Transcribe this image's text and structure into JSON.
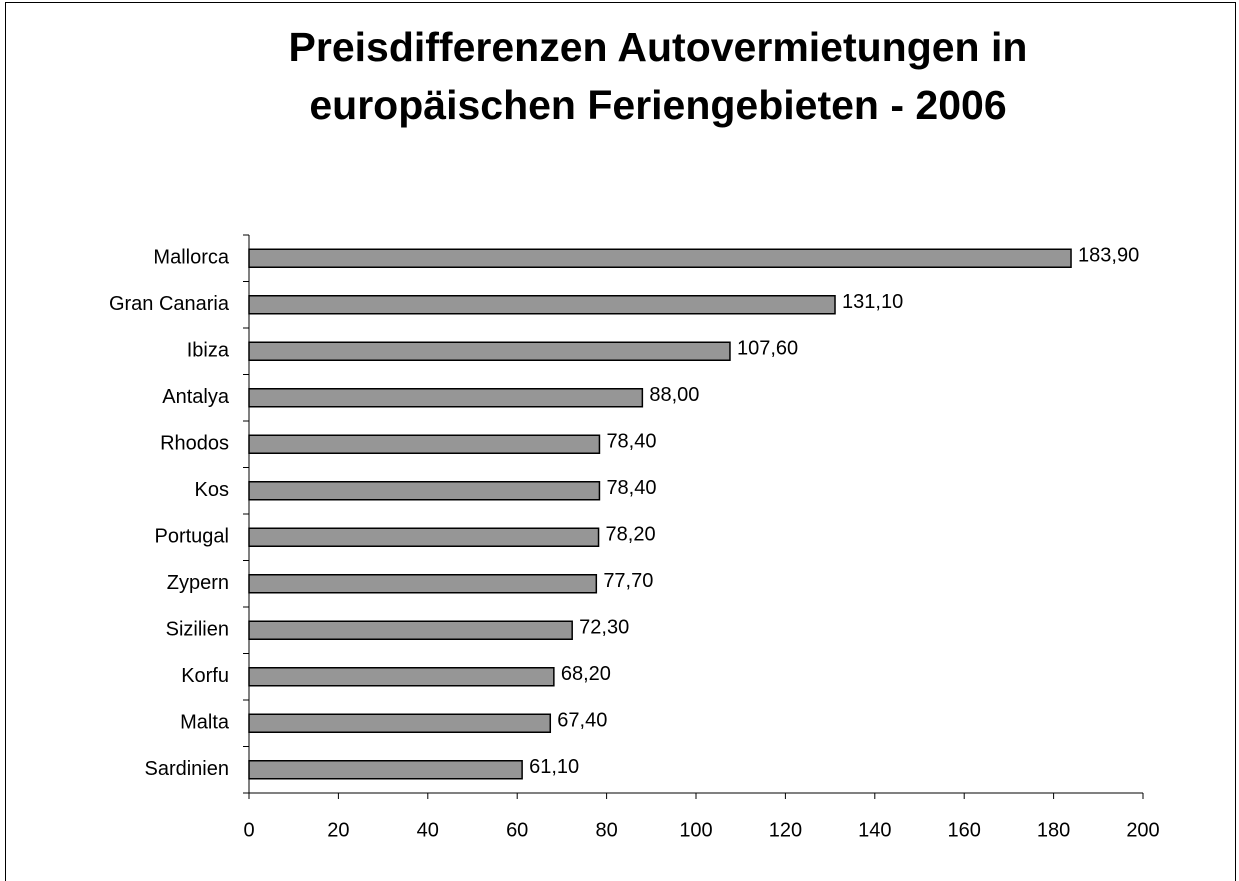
{
  "chart_data": {
    "type": "bar",
    "orientation": "horizontal",
    "title": [
      "Preisdifferenzen Autovermietungen in",
      "europäischen Feriengebieten - 2006"
    ],
    "categories": [
      "Mallorca",
      "Gran Canaria",
      "Ibiza",
      "Antalya",
      "Rhodos",
      "Kos",
      "Portugal",
      "Zypern",
      "Sizilien",
      "Korfu",
      "Malta",
      "Sardinien"
    ],
    "values": [
      183.9,
      131.1,
      107.6,
      88.0,
      78.4,
      78.4,
      78.2,
      77.7,
      72.3,
      68.2,
      67.4,
      61.1
    ],
    "value_labels": [
      "183,90",
      "131,10",
      "107,60",
      "88,00",
      "78,40",
      "78,40",
      "78,20",
      "77,70",
      "72,30",
      "68,20",
      "67,40",
      "61,10"
    ],
    "color": "#969696",
    "xlim": [
      0,
      200
    ],
    "xticks": [
      0,
      20,
      40,
      60,
      80,
      100,
      120,
      140,
      160,
      180,
      200
    ],
    "grid": false
  }
}
